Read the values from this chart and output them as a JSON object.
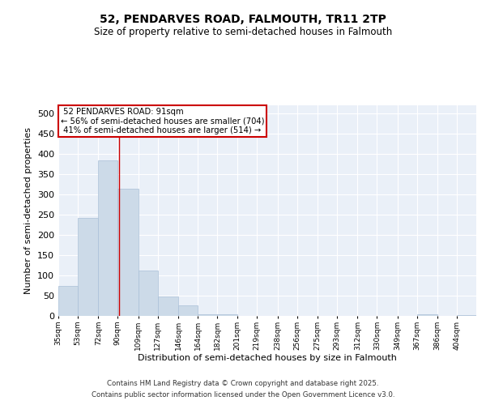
{
  "title_line1": "52, PENDARVES ROAD, FALMOUTH, TR11 2TP",
  "title_line2": "Size of property relative to semi-detached houses in Falmouth",
  "xlabel": "Distribution of semi-detached houses by size in Falmouth",
  "ylabel": "Number of semi-detached properties",
  "bar_color": "#ccdae8",
  "bar_edge_color": "#aac0d8",
  "background_color": "#eaf0f8",
  "grid_color": "#ffffff",
  "annotation_line_color": "#cc0000",
  "annotation_box_color": "#cc0000",
  "property_value": 91,
  "property_label": "52 PENDARVES ROAD: 91sqm",
  "pct_smaller": 56,
  "count_smaller": 704,
  "pct_larger": 41,
  "count_larger": 514,
  "bin_labels": [
    "35sqm",
    "53sqm",
    "72sqm",
    "90sqm",
    "109sqm",
    "127sqm",
    "146sqm",
    "164sqm",
    "182sqm",
    "201sqm",
    "219sqm",
    "238sqm",
    "256sqm",
    "275sqm",
    "293sqm",
    "312sqm",
    "330sqm",
    "349sqm",
    "367sqm",
    "386sqm",
    "404sqm"
  ],
  "bin_edges": [
    35,
    53,
    72,
    90,
    109,
    127,
    146,
    164,
    182,
    201,
    219,
    238,
    256,
    275,
    293,
    312,
    330,
    349,
    367,
    386,
    404
  ],
  "bar_heights": [
    75,
    242,
    385,
    315,
    113,
    49,
    27,
    5,
    5,
    0,
    0,
    0,
    0,
    0,
    0,
    0,
    0,
    0,
    4,
    0,
    2
  ],
  "ylim": [
    0,
    520
  ],
  "yticks": [
    0,
    50,
    100,
    150,
    200,
    250,
    300,
    350,
    400,
    450,
    500
  ],
  "footer_line1": "Contains HM Land Registry data © Crown copyright and database right 2025.",
  "footer_line2": "Contains public sector information licensed under the Open Government Licence v3.0."
}
